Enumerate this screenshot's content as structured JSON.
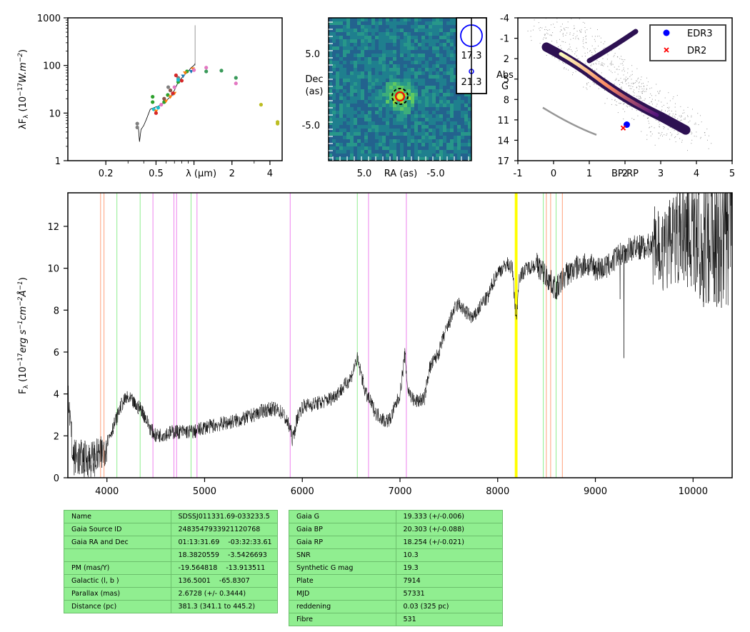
{
  "chart_data": [
    {
      "type": "scatter",
      "panel": "sed",
      "xscale": "log",
      "yscale": "log",
      "xlim": [
        0.1,
        5.0
      ],
      "ylim": [
        1,
        1000
      ],
      "xlabel": "λ (μm)",
      "ylabel": "λF_λ (10^-17 W.m^-2)",
      "xtick_labels": [
        "0.2",
        "0.5",
        "λ (μm)",
        "2",
        "4"
      ],
      "ytick_labels": [
        "1",
        "10",
        "100",
        "1000"
      ],
      "spectrum_curve": [
        [
          0.362,
          5.0
        ],
        [
          0.37,
          2.5
        ],
        [
          0.38,
          4.5
        ],
        [
          0.4,
          5.5
        ],
        [
          0.42,
          7.5
        ],
        [
          0.45,
          12
        ],
        [
          0.48,
          13
        ],
        [
          0.52,
          14
        ],
        [
          0.55,
          15
        ],
        [
          0.6,
          18
        ],
        [
          0.65,
          22
        ],
        [
          0.7,
          30
        ],
        [
          0.75,
          45
        ],
        [
          0.8,
          55
        ],
        [
          0.85,
          65
        ],
        [
          0.9,
          75
        ],
        [
          0.95,
          90
        ],
        [
          1.0,
          100
        ],
        [
          1.02,
          110
        ]
      ],
      "spectrum_spike": [
        1.02,
        700
      ],
      "series": [
        {
          "color": "#7f7f7f",
          "points": [
            [
              0.355,
              6.0
            ],
            [
              0.355,
              5.0
            ],
            [
              0.625,
              35
            ],
            [
              0.75,
              55
            ]
          ]
        },
        {
          "color": "#2ca02c",
          "points": [
            [
              0.47,
              22
            ],
            [
              0.47,
              17
            ],
            [
              0.58,
              17
            ],
            [
              0.62,
              24
            ],
            [
              0.75,
              45
            ],
            [
              0.88,
              75
            ]
          ]
        },
        {
          "color": "#17becf",
          "points": [
            [
              0.48,
              12
            ],
            [
              0.52,
              13
            ],
            [
              0.75,
              50
            ]
          ]
        },
        {
          "color": "#1f77b4",
          "marker": "triangle",
          "points": [
            [
              0.68,
              25
            ],
            [
              0.82,
              60
            ],
            [
              0.95,
              75
            ]
          ]
        },
        {
          "color": "#ff7f0e",
          "marker": "triangle",
          "points": [
            [
              0.5,
              11
            ],
            [
              0.6,
              18
            ],
            [
              0.65,
              22
            ],
            [
              0.7,
              26
            ],
            [
              0.85,
              70
            ],
            [
              0.98,
              85
            ]
          ]
        },
        {
          "color": "#d62728",
          "points": [
            [
              0.5,
              10
            ],
            [
              0.68,
              26
            ],
            [
              0.72,
              62
            ],
            [
              0.8,
              48
            ]
          ]
        },
        {
          "color": "#e377c2",
          "points": [
            [
              0.55,
              15
            ],
            [
              0.7,
              35
            ],
            [
              1.0,
              80
            ],
            [
              1.25,
              90
            ],
            [
              2.15,
              42
            ]
          ]
        },
        {
          "color": "#8c564b",
          "points": [
            [
              0.58,
              20
            ],
            [
              0.65,
              30
            ]
          ]
        },
        {
          "color": "#3a9a5a",
          "points": [
            [
              1.25,
              75
            ],
            [
              1.65,
              78
            ],
            [
              2.15,
              55
            ]
          ]
        },
        {
          "color": "#bcbd22",
          "points": [
            [
              3.4,
              15
            ],
            [
              4.6,
              6.5
            ],
            [
              4.6,
              6.0
            ]
          ]
        }
      ]
    },
    {
      "type": "heatmap",
      "panel": "image-cutout",
      "xlabel": "RA (as)",
      "ylabel_line1": "Dec",
      "ylabel_line2": "(as)",
      "xlim": [
        10,
        -10
      ],
      "ylim": [
        -10,
        10
      ],
      "xtick_labels": [
        "5.0",
        "-5.0"
      ],
      "ytick_labels": [
        "5.0",
        "-5.0"
      ],
      "source_xy": [
        0.0,
        -1.0
      ],
      "legend": [
        {
          "label": "17.3",
          "color": "#0000ff"
        },
        {
          "label": "21.3",
          "color": "#0000ff"
        }
      ]
    },
    {
      "type": "scatter",
      "panel": "hr-diagram",
      "xlabel": "BP-RP",
      "ylabel_line1": "Abs",
      "ylabel_line2": "G",
      "xlim": [
        -1,
        5
      ],
      "ylim": [
        17,
        -4
      ],
      "xtick_labels": [
        "-1",
        "0",
        "1",
        "2",
        "3",
        "4",
        "5"
      ],
      "ytick_labels": [
        "-4",
        "-1",
        "2",
        "5",
        "8",
        "11",
        "14",
        "17"
      ],
      "legend": [
        {
          "label": "EDR3",
          "marker": "circle",
          "color": "#0000ff"
        },
        {
          "label": "DR2",
          "marker": "x",
          "color": "#ff0000"
        }
      ],
      "points": [
        {
          "series": "EDR3",
          "x": 2.05,
          "y": 11.7
        },
        {
          "series": "DR2",
          "x": 1.95,
          "y": 12.2
        }
      ]
    },
    {
      "type": "line",
      "panel": "spectrum",
      "xlim": [
        3600,
        10400
      ],
      "ylim": [
        0,
        13.6
      ],
      "ylabel": "F_λ (10^-17 erg s^-1 cm^-2 Å^-1)",
      "xtick_labels": [
        "4000",
        "5000",
        "6000",
        "7000",
        "8000",
        "9000",
        "10000"
      ],
      "ytick_labels": [
        "0",
        "2",
        "4",
        "6",
        "8",
        "10",
        "12"
      ],
      "flux_profile": [
        [
          3600,
          4.5
        ],
        [
          3650,
          1.0
        ],
        [
          3750,
          0.9
        ],
        [
          3850,
          0.9
        ],
        [
          3950,
          1.1
        ],
        [
          4000,
          1.7
        ],
        [
          4080,
          2.6
        ],
        [
          4150,
          3.5
        ],
        [
          4200,
          3.8
        ],
        [
          4250,
          3.7
        ],
        [
          4300,
          3.4
        ],
        [
          4350,
          3.3
        ],
        [
          4400,
          2.8
        ],
        [
          4450,
          2.3
        ],
        [
          4500,
          2.0
        ],
        [
          4600,
          2.1
        ],
        [
          4700,
          2.2
        ],
        [
          4800,
          2.2
        ],
        [
          4900,
          2.2
        ],
        [
          5000,
          2.4
        ],
        [
          5100,
          2.5
        ],
        [
          5200,
          2.6
        ],
        [
          5300,
          2.7
        ],
        [
          5400,
          2.8
        ],
        [
          5500,
          3.0
        ],
        [
          5600,
          3.2
        ],
        [
          5700,
          3.3
        ],
        [
          5800,
          3.1
        ],
        [
          5880,
          2.3
        ],
        [
          5900,
          1.8
        ],
        [
          5950,
          2.9
        ],
        [
          6000,
          3.4
        ],
        [
          6100,
          3.5
        ],
        [
          6200,
          3.6
        ],
        [
          6300,
          3.8
        ],
        [
          6400,
          4.2
        ],
        [
          6500,
          4.8
        ],
        [
          6560,
          5.7
        ],
        [
          6600,
          5.0
        ],
        [
          6650,
          4.0
        ],
        [
          6700,
          3.6
        ],
        [
          6750,
          3.1
        ],
        [
          6800,
          2.9
        ],
        [
          6850,
          2.7
        ],
        [
          6900,
          2.8
        ],
        [
          6950,
          3.4
        ],
        [
          7000,
          4.0
        ],
        [
          7050,
          5.9
        ],
        [
          7080,
          4.2
        ],
        [
          7150,
          3.6
        ],
        [
          7250,
          3.8
        ],
        [
          7300,
          5.2
        ],
        [
          7400,
          6.0
        ],
        [
          7450,
          6.8
        ],
        [
          7500,
          7.3
        ],
        [
          7550,
          8.0
        ],
        [
          7600,
          8.3
        ],
        [
          7650,
          8.0
        ],
        [
          7700,
          7.8
        ],
        [
          7750,
          7.6
        ],
        [
          7800,
          8.0
        ],
        [
          7850,
          8.4
        ],
        [
          7900,
          8.6
        ],
        [
          7950,
          9.3
        ],
        [
          8000,
          9.8
        ],
        [
          8050,
          10.0
        ],
        [
          8100,
          10.2
        ],
        [
          8150,
          10.0
        ],
        [
          8190,
          7.5
        ],
        [
          8220,
          9.6
        ],
        [
          8300,
          10.0
        ],
        [
          8400,
          10.2
        ],
        [
          8500,
          9.6
        ],
        [
          8600,
          9.0
        ],
        [
          8700,
          9.7
        ],
        [
          8800,
          10.0
        ],
        [
          8900,
          10.2
        ],
        [
          9000,
          10.0
        ],
        [
          9100,
          10.0
        ],
        [
          9200,
          10.4
        ],
        [
          9300,
          10.8
        ],
        [
          9400,
          11.0
        ],
        [
          9500,
          11.0
        ],
        [
          9600,
          11.2
        ],
        [
          9700,
          10.8
        ],
        [
          9800,
          11.6
        ],
        [
          9900,
          11.8
        ],
        [
          10000,
          11.6
        ],
        [
          10100,
          11.4
        ],
        [
          10200,
          11.8
        ],
        [
          10300,
          12.0
        ],
        [
          10400,
          12.4
        ]
      ],
      "lines": [
        {
          "x": 3935,
          "color": "#ffa07a"
        },
        {
          "x": 3970,
          "color": "#ffa07a"
        },
        {
          "x": 4102,
          "color": "#90ee90"
        },
        {
          "x": 4340,
          "color": "#90ee90"
        },
        {
          "x": 4471,
          "color": "#ee82ee"
        },
        {
          "x": 4686,
          "color": "#ee82ee"
        },
        {
          "x": 4713,
          "color": "#ee82ee"
        },
        {
          "x": 4861,
          "color": "#90ee90"
        },
        {
          "x": 4922,
          "color": "#ee82ee"
        },
        {
          "x": 5876,
          "color": "#ee82ee"
        },
        {
          "x": 6563,
          "color": "#90ee90"
        },
        {
          "x": 6678,
          "color": "#ee82ee"
        },
        {
          "x": 7065,
          "color": "#ee82ee"
        },
        {
          "x": 8183,
          "color": "#ffff00"
        },
        {
          "x": 8195,
          "color": "#ffff00"
        },
        {
          "x": 8467,
          "color": "#90ee90"
        },
        {
          "x": 8498,
          "color": "#ffa07a"
        },
        {
          "x": 8542,
          "color": "#ffa07a"
        },
        {
          "x": 8598,
          "color": "#90ee90"
        },
        {
          "x": 8662,
          "color": "#ffa07a"
        }
      ]
    }
  ],
  "info_table_left": [
    [
      "Name",
      "SDSSJ011331.69-033233.5"
    ],
    [
      "Gaia Source ID",
      "2483547933921120768"
    ],
    [
      "Gaia RA and Dec",
      "01:13:31.69    -03:32:33.61"
    ],
    [
      "",
      "18.3820559    -3.5426693"
    ],
    [
      "PM (mas/Y)",
      "-19.564818    -13.913511"
    ],
    [
      "Galactic (l, b )",
      "136.5001    -65.8307"
    ],
    [
      "Parallax (mas)",
      "2.6728 (+/- 0.3444)"
    ],
    [
      "Distance (pc)",
      "381.3 (341.1 to 445.2)"
    ]
  ],
  "info_table_right": [
    [
      "Gaia G",
      "19.333 (+/-0.006)"
    ],
    [
      "Gaia BP",
      "20.303 (+/-0.088)"
    ],
    [
      "Gaia RP",
      "18.254 (+/-0.021)"
    ],
    [
      "SNR",
      "10.3"
    ],
    [
      "Synthetic G mag",
      "19.3"
    ],
    [
      "Plate",
      "7914"
    ],
    [
      "MJD",
      "57331"
    ],
    [
      "reddening",
      "0.03 (325 pc)"
    ],
    [
      "Fibre",
      "531"
    ]
  ]
}
